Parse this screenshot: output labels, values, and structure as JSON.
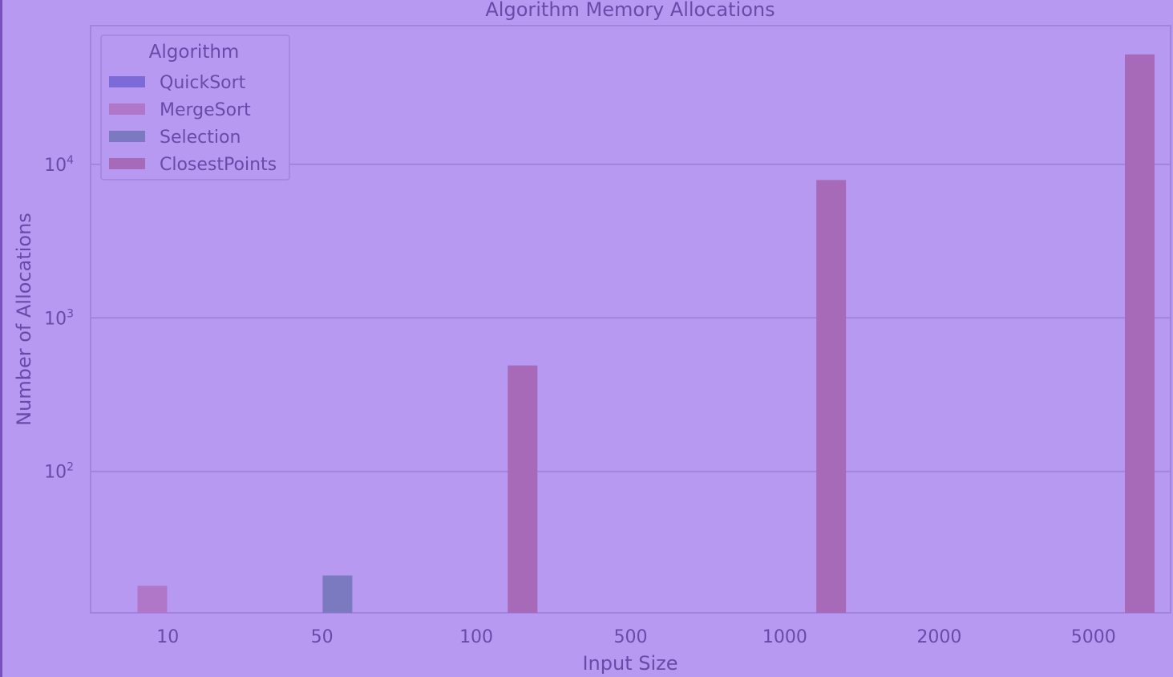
{
  "chart_data": {
    "type": "bar",
    "title": "Algorithm Memory Allocations",
    "xlabel": "Input Size",
    "ylabel": "Number of Allocations",
    "yscale": "log",
    "ylim": [
      12,
      80000
    ],
    "ytick_labels": [
      {
        "base": "10",
        "exp": "2",
        "value": 100
      },
      {
        "base": "10",
        "exp": "3",
        "value": 1000
      },
      {
        "base": "10",
        "exp": "4",
        "value": 10000
      }
    ],
    "categories": [
      "10",
      "50",
      "100",
      "500",
      "1000",
      "2000",
      "5000"
    ],
    "legend": {
      "title": "Algorithm",
      "position": "top-left"
    },
    "grid": "horizontal",
    "series": [
      {
        "name": "QuickSort",
        "color": "#7b6ad8",
        "values": [
          null,
          null,
          null,
          null,
          null,
          null,
          null
        ]
      },
      {
        "name": "MergeSort",
        "color": "#b077c9",
        "values": [
          18,
          null,
          null,
          null,
          null,
          null,
          null
        ]
      },
      {
        "name": "Selection",
        "color": "#7b79bf",
        "values": [
          null,
          21,
          null,
          null,
          null,
          null,
          null
        ]
      },
      {
        "name": "ClosestPoints",
        "color": "#a66ab8",
        "values": [
          null,
          null,
          490,
          null,
          7900,
          null,
          52000
        ]
      }
    ]
  }
}
